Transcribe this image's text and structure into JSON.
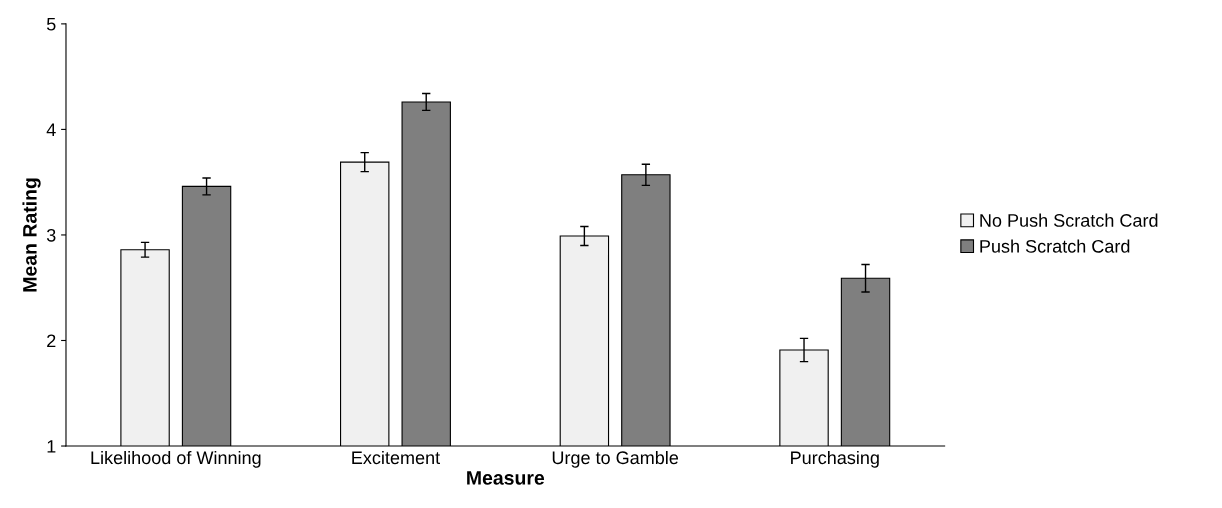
{
  "chart_data": {
    "type": "bar",
    "xlabel": "Measure",
    "ylabel": "Mean Rating",
    "categories": [
      "Likelihood of Winning",
      "Excitement",
      "Urge to Gamble",
      "Purchasing"
    ],
    "series": [
      {
        "name": "No Push Scratch Card",
        "color": "#f0f0f0",
        "values": [
          2.86,
          3.69,
          2.99,
          1.91
        ],
        "errors": [
          0.07,
          0.09,
          0.09,
          0.11
        ]
      },
      {
        "name": "Push Scratch Card",
        "color": "#7f7f7f",
        "values": [
          3.46,
          4.26,
          3.57,
          2.59
        ],
        "errors": [
          0.08,
          0.08,
          0.1,
          0.13
        ]
      }
    ],
    "ylim": [
      1,
      5
    ],
    "yticks": [
      1,
      2,
      3,
      4,
      5
    ],
    "grid": false,
    "legend": "right"
  }
}
